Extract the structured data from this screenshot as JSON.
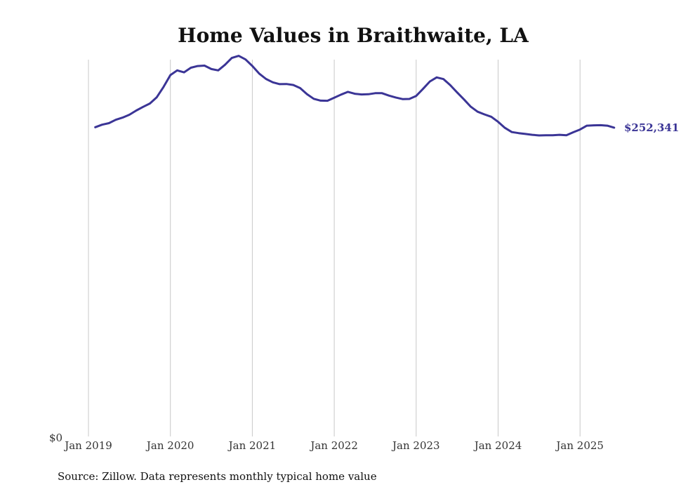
{
  "chart_data": {
    "type": "line",
    "title": "Home Values in Braithwaite, LA",
    "source": "Source: Zillow. Data represents monthly typical home value",
    "y_zero_label": "$0",
    "last_value_label": "$252,341",
    "line_color": "#3b3596",
    "grid": "vertical",
    "x_ticks": [
      "Jan 2019",
      "Jan 2020",
      "Jan 2021",
      "Jan 2022",
      "Jan 2023",
      "Jan 2024",
      "Jan 2025"
    ],
    "x_tick_years": [
      2019,
      2020,
      2021,
      2022,
      2023,
      2024,
      2025
    ],
    "ylim": [
      0,
      303000
    ],
    "series": [
      {
        "points": [
          [
            "2019-02",
            252700
          ],
          [
            "2019-03",
            254800
          ],
          [
            "2019-04",
            256100
          ],
          [
            "2019-05",
            258900
          ],
          [
            "2019-06",
            260700
          ],
          [
            "2019-07",
            263100
          ],
          [
            "2019-08",
            266600
          ],
          [
            "2019-09",
            269600
          ],
          [
            "2019-10",
            272400
          ],
          [
            "2019-11",
            277600
          ],
          [
            "2019-12",
            286200
          ],
          [
            "2020-01",
            296000
          ],
          [
            "2020-02",
            299900
          ],
          [
            "2020-03",
            298300
          ],
          [
            "2020-04",
            302100
          ],
          [
            "2020-05",
            303500
          ],
          [
            "2020-06",
            303900
          ],
          [
            "2020-07",
            301000
          ],
          [
            "2020-08",
            299900
          ],
          [
            "2020-09",
            304600
          ],
          [
            "2020-10",
            310200
          ],
          [
            "2020-11",
            312000
          ],
          [
            "2020-12",
            309000
          ],
          [
            "2021-01",
            303600
          ],
          [
            "2021-02",
            297300
          ],
          [
            "2021-03",
            292800
          ],
          [
            "2021-04",
            290000
          ],
          [
            "2021-05",
            288500
          ],
          [
            "2021-06",
            288600
          ],
          [
            "2021-07",
            287800
          ],
          [
            "2021-08",
            285200
          ],
          [
            "2021-09",
            280200
          ],
          [
            "2021-10",
            276300
          ],
          [
            "2021-11",
            274800
          ],
          [
            "2021-12",
            274700
          ],
          [
            "2022-01",
            277200
          ],
          [
            "2022-02",
            279800
          ],
          [
            "2022-03",
            282100
          ],
          [
            "2022-04",
            280500
          ],
          [
            "2022-05",
            279900
          ],
          [
            "2022-06",
            280100
          ],
          [
            "2022-07",
            281000
          ],
          [
            "2022-08",
            281000
          ],
          [
            "2022-09",
            279000
          ],
          [
            "2022-10",
            277400
          ],
          [
            "2022-11",
            276100
          ],
          [
            "2022-12",
            276200
          ],
          [
            "2023-01",
            278700
          ],
          [
            "2023-02",
            284500
          ],
          [
            "2023-03",
            290700
          ],
          [
            "2023-04",
            294100
          ],
          [
            "2023-05",
            292700
          ],
          [
            "2023-06",
            287600
          ],
          [
            "2023-07",
            281600
          ],
          [
            "2023-08",
            275800
          ],
          [
            "2023-09",
            269700
          ],
          [
            "2023-10",
            265600
          ],
          [
            "2023-11",
            263400
          ],
          [
            "2023-12",
            261400
          ],
          [
            "2024-01",
            257200
          ],
          [
            "2024-02",
            252200
          ],
          [
            "2024-03",
            248700
          ],
          [
            "2024-04",
            247800
          ],
          [
            "2024-05",
            247100
          ],
          [
            "2024-06",
            246400
          ],
          [
            "2024-07",
            245900
          ],
          [
            "2024-08",
            246000
          ],
          [
            "2024-09",
            246000
          ],
          [
            "2024-10",
            246400
          ],
          [
            "2024-11",
            246000
          ],
          [
            "2024-12",
            248500
          ],
          [
            "2025-01",
            250800
          ],
          [
            "2025-02",
            254000
          ],
          [
            "2025-03",
            254300
          ],
          [
            "2025-04",
            254400
          ],
          [
            "2025-05",
            254000
          ],
          [
            "2025-06",
            252341
          ]
        ]
      }
    ]
  }
}
